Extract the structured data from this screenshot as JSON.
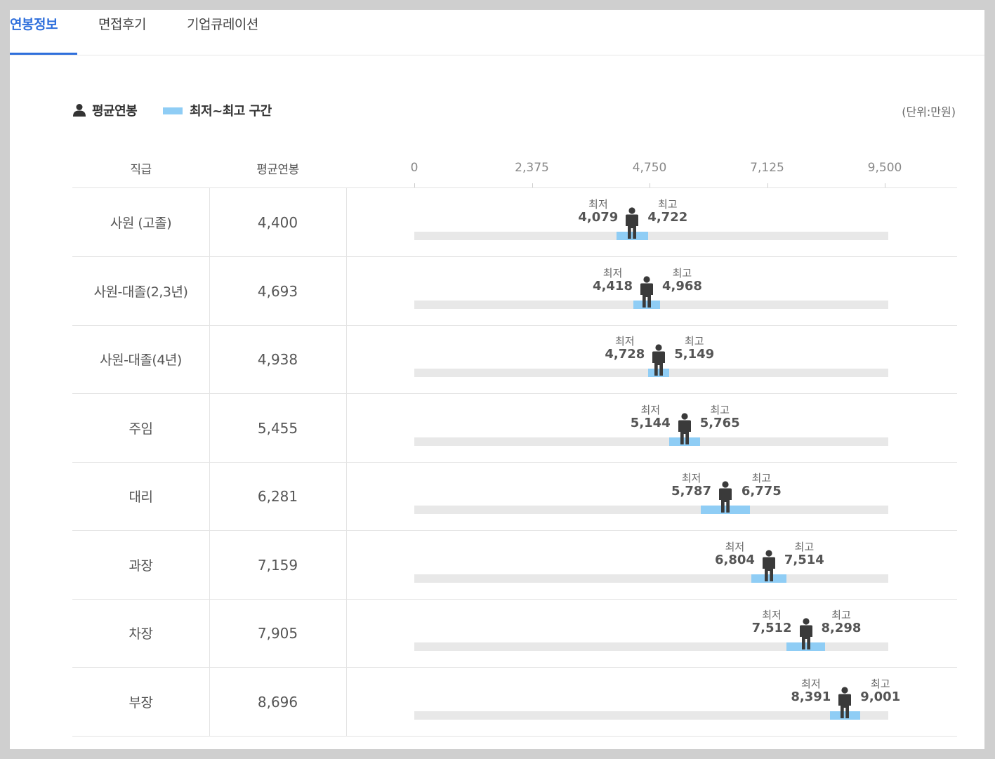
{
  "tabs": [
    {
      "label": "연봉정보",
      "active": true
    },
    {
      "label": "면접후기",
      "active": false
    },
    {
      "label": "기업큐레이션",
      "active": false
    }
  ],
  "legend": {
    "avg_label": "평균연봉",
    "range_label": "최저~최고 구간",
    "unit": "(단위:만원)",
    "range_color": "#8fcdf5",
    "accent_color": "#2f6fdc"
  },
  "table_headers": {
    "rank": "직급",
    "avg": "평균연봉"
  },
  "labels": {
    "min": "최저",
    "max": "최고"
  },
  "chart_data": {
    "type": "table",
    "axis": {
      "min": 0,
      "max": 9500,
      "ticks": [
        0,
        2375,
        4750,
        7125,
        9500
      ],
      "tick_labels": [
        "0",
        "2,375",
        "4,750",
        "7,125",
        "9,500"
      ]
    },
    "rows": [
      {
        "rank": "사원 (고졸)",
        "avg": 4400,
        "avg_label": "4,400",
        "min": 4079,
        "min_label": "4,079",
        "max": 4722,
        "max_label": "4,722"
      },
      {
        "rank": "사원-대졸(2,3년)",
        "avg": 4693,
        "avg_label": "4,693",
        "min": 4418,
        "min_label": "4,418",
        "max": 4968,
        "max_label": "4,968"
      },
      {
        "rank": "사원-대졸(4년)",
        "avg": 4938,
        "avg_label": "4,938",
        "min": 4728,
        "min_label": "4,728",
        "max": 5149,
        "max_label": "5,149"
      },
      {
        "rank": "주임",
        "avg": 5455,
        "avg_label": "5,455",
        "min": 5144,
        "min_label": "5,144",
        "max": 5765,
        "max_label": "5,765"
      },
      {
        "rank": "대리",
        "avg": 6281,
        "avg_label": "6,281",
        "min": 5787,
        "min_label": "5,787",
        "max": 6775,
        "max_label": "6,775"
      },
      {
        "rank": "과장",
        "avg": 7159,
        "avg_label": "7,159",
        "min": 6804,
        "min_label": "6,804",
        "max": 7514,
        "max_label": "7,514"
      },
      {
        "rank": "차장",
        "avg": 7905,
        "avg_label": "7,905",
        "min": 7512,
        "min_label": "7,512",
        "max": 8298,
        "max_label": "8,298"
      },
      {
        "rank": "부장",
        "avg": 8696,
        "avg_label": "8,696",
        "min": 8391,
        "min_label": "8,391",
        "max": 9001,
        "max_label": "9,001"
      }
    ]
  }
}
